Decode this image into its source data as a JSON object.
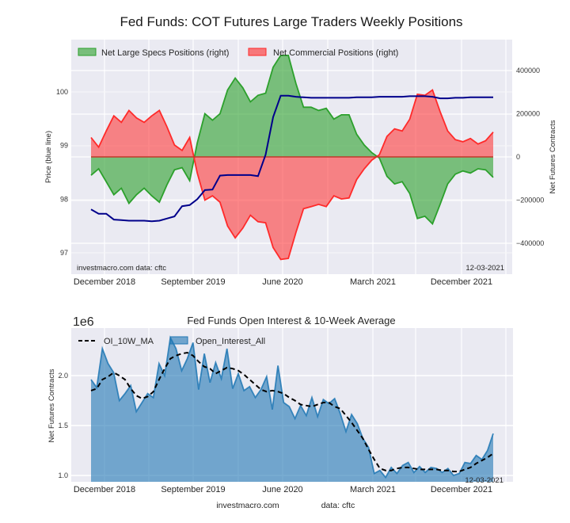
{
  "page": {
    "footer_site": "investmacro.com",
    "footer_data": "data: cftc"
  },
  "chart_data": [
    {
      "type": "area",
      "title": "Fed Funds: COT Futures Large Traders Weekly Positions",
      "ylabel_left": "Price (blue line)",
      "ylabel_right": "Net Futures Contracts",
      "xlabel": "",
      "x_ticks": [
        "December 2018",
        "September 2019",
        "June 2020",
        "March 2021",
        "December 2021"
      ],
      "y_left_ticks": [
        "97",
        "98",
        "99",
        "100"
      ],
      "y_right_ticks": [
        "-400000",
        "-200000",
        "0",
        "200000",
        "400000"
      ],
      "ylim_left": [
        96.6,
        100.9
      ],
      "ylim_right": [
        -545000,
        545000
      ],
      "grid": true,
      "legend_position": "top-left",
      "annotations": {
        "source": "investmacro.com   data: cftc",
        "date": "12-03-2021"
      },
      "legend": [
        {
          "label": "Net Large Specs Positions (right)",
          "color": "#2ca02c"
        },
        {
          "label": "Net Commercial Positions (right)",
          "color": "#ff2a2a"
        }
      ],
      "x_range": [
        "2018-11-20",
        "2021-12-03"
      ],
      "series": [
        {
          "name": "Net Large Specs Positions (right)",
          "axis": "right",
          "color": "#2ca02c",
          "values": [
            -85000,
            -55000,
            -115000,
            -175000,
            -145000,
            -215000,
            -175000,
            -145000,
            -180000,
            -210000,
            -130000,
            -60000,
            -50000,
            -110000,
            65000,
            200000,
            170000,
            200000,
            310000,
            365000,
            320000,
            255000,
            285000,
            295000,
            415000,
            470000,
            470000,
            340000,
            230000,
            230000,
            215000,
            225000,
            175000,
            195000,
            195000,
            105000,
            55000,
            20000,
            -5000,
            -90000,
            -125000,
            -115000,
            -170000,
            -285000,
            -275000,
            -310000,
            -220000,
            -125000,
            -80000,
            -65000,
            -75000,
            -55000,
            -60000,
            -95000
          ]
        },
        {
          "name": "Net Commercial Positions (right)",
          "axis": "right",
          "color": "#ff2a2a",
          "values": [
            90000,
            45000,
            120000,
            190000,
            160000,
            215000,
            180000,
            160000,
            190000,
            215000,
            140000,
            55000,
            30000,
            90000,
            -75000,
            -200000,
            -180000,
            -210000,
            -320000,
            -375000,
            -330000,
            -270000,
            -300000,
            -305000,
            -420000,
            -475000,
            -470000,
            -350000,
            -240000,
            -230000,
            -220000,
            -230000,
            -180000,
            -195000,
            -190000,
            -105000,
            -55000,
            -15000,
            10000,
            95000,
            130000,
            120000,
            175000,
            290000,
            285000,
            310000,
            210000,
            120000,
            80000,
            70000,
            85000,
            60000,
            75000,
            115000
          ]
        },
        {
          "name": "Price (blue line)",
          "axis": "left",
          "color": "#00008b",
          "values": [
            97.81,
            97.73,
            97.73,
            97.62,
            97.61,
            97.6,
            97.6,
            97.6,
            97.59,
            97.6,
            97.64,
            97.68,
            97.87,
            97.89,
            98.0,
            98.17,
            98.18,
            98.44,
            98.45,
            98.45,
            98.45,
            98.45,
            98.43,
            98.83,
            99.53,
            99.93,
            99.93,
            99.91,
            99.9,
            99.89,
            99.89,
            99.89,
            99.89,
            99.89,
            99.89,
            99.9,
            99.9,
            99.9,
            99.91,
            99.91,
            99.91,
            99.91,
            99.92,
            99.92,
            99.92,
            99.91,
            99.88,
            99.88,
            99.89,
            99.89,
            99.9,
            99.9,
            99.9,
            99.9
          ]
        }
      ]
    },
    {
      "type": "area",
      "title": "Fed Funds Open Interest & 10-Week Average",
      "ylabel": "Net Futures Contracts",
      "xlabel": "",
      "scale_label": "1e6",
      "x_ticks": [
        "December 2018",
        "September 2019",
        "June 2020",
        "March 2021",
        "December 2021"
      ],
      "y_ticks": [
        "1.0",
        "1.5",
        "2.0"
      ],
      "ylim": [
        0.94,
        2.46
      ],
      "grid": true,
      "legend_position": "top-left",
      "annotations": {
        "date": "12-03-2021"
      },
      "legend": [
        {
          "label": "OI_10W_MA",
          "color": "#000000",
          "style": "dashed"
        },
        {
          "label": "Open_Interest_All",
          "color": "#1f77b4"
        }
      ],
      "x_range": [
        "2018-11-20",
        "2021-12-03"
      ],
      "series": [
        {
          "name": "Open_Interest_All",
          "color": "#1f77b4",
          "values": [
            1.96,
            1.88,
            2.27,
            2.12,
            2.03,
            1.75,
            1.82,
            1.9,
            1.64,
            1.73,
            1.82,
            1.78,
            2.12,
            2.0,
            2.38,
            2.27,
            2.05,
            2.17,
            2.33,
            1.86,
            2.22,
            1.93,
            2.13,
            1.97,
            2.27,
            1.87,
            2.02,
            1.85,
            1.89,
            1.78,
            1.86,
            1.99,
            1.66,
            2.1,
            1.73,
            1.69,
            1.57,
            1.7,
            1.6,
            1.78,
            1.59,
            1.76,
            1.72,
            1.77,
            1.62,
            1.44,
            1.61,
            1.52,
            1.37,
            1.28,
            1.02,
            1.05,
            0.98,
            1.08,
            1.02,
            1.1,
            1.13,
            1.03,
            1.09,
            1.03,
            1.08,
            1.07,
            1.03,
            1.07,
            1.0,
            1.02,
            1.13,
            1.12,
            1.2,
            1.16,
            1.25,
            1.42
          ]
        },
        {
          "name": "OI_10W_MA",
          "color": "#000000",
          "values": [
            1.85,
            1.87,
            1.96,
            1.99,
            2.03,
            2.0,
            1.96,
            1.87,
            1.8,
            1.77,
            1.79,
            1.84,
            1.96,
            2.07,
            2.17,
            2.2,
            2.22,
            2.23,
            2.2,
            2.14,
            2.09,
            2.07,
            2.02,
            2.05,
            2.08,
            2.07,
            2.05,
            2.01,
            1.96,
            1.91,
            1.86,
            1.84,
            1.85,
            1.84,
            1.82,
            1.78,
            1.75,
            1.71,
            1.7,
            1.69,
            1.71,
            1.73,
            1.73,
            1.69,
            1.67,
            1.6,
            1.53,
            1.45,
            1.37,
            1.26,
            1.16,
            1.07,
            1.05,
            1.05,
            1.07,
            1.08,
            1.08,
            1.07,
            1.06,
            1.06,
            1.06,
            1.06,
            1.05,
            1.05,
            1.04,
            1.04,
            1.06,
            1.08,
            1.12,
            1.15,
            1.18,
            1.22
          ]
        }
      ]
    }
  ]
}
